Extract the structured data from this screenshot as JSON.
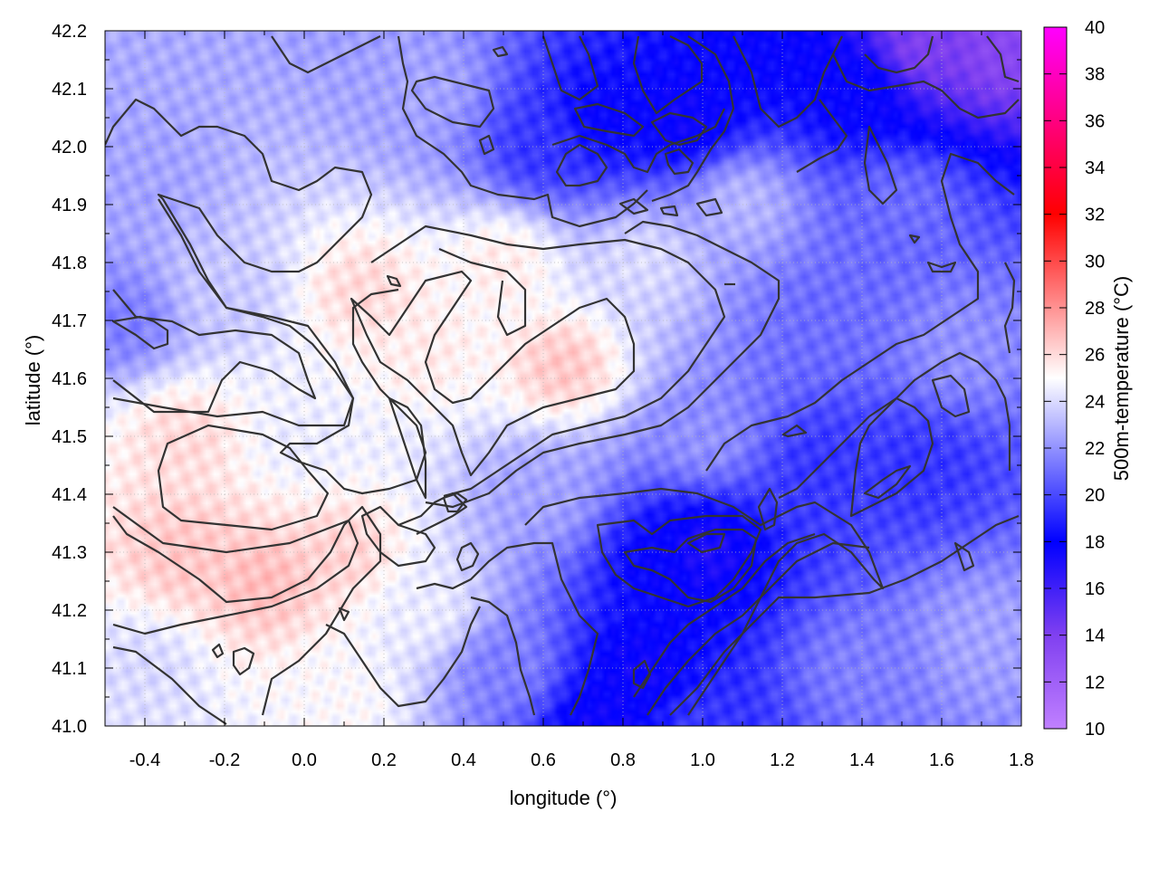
{
  "chart_data": {
    "type": "heatmap",
    "title": "",
    "xlabel": "longitude (°)",
    "ylabel": "latitude (°)",
    "colorbar_label": "500m-temperature (°C)",
    "xlim": [
      -0.5,
      1.8
    ],
    "ylim": [
      41.0,
      42.2
    ],
    "x_ticks": [
      -0.4,
      -0.2,
      0.0,
      0.2,
      0.4,
      0.6,
      0.8,
      1.0,
      1.2,
      1.4,
      1.6,
      1.8
    ],
    "x_tick_labels": [
      "-0.4",
      "-0.2",
      "0.0",
      "0.2",
      "0.4",
      "0.6",
      "0.8",
      "1.0",
      "1.2",
      "1.4",
      "1.6",
      "1.8"
    ],
    "y_ticks": [
      41.0,
      41.1,
      41.2,
      41.3,
      41.4,
      41.5,
      41.6,
      41.7,
      41.8,
      41.9,
      42.0,
      42.1,
      42.2
    ],
    "y_tick_labels": [
      "41.0",
      "41.1",
      "41.2",
      "41.3",
      "41.4",
      "41.5",
      "41.6",
      "41.7",
      "41.8",
      "41.9",
      "42.0",
      "42.1",
      "42.2"
    ],
    "colorbar_range": [
      10,
      40
    ],
    "colorbar_ticks": [
      10,
      12,
      14,
      16,
      18,
      20,
      22,
      24,
      26,
      28,
      30,
      32,
      34,
      36,
      38,
      40
    ],
    "colorbar_tick_labels": [
      "10",
      "12",
      "14",
      "16",
      "18",
      "20",
      "22",
      "24",
      "26",
      "28",
      "30",
      "32",
      "34",
      "36",
      "38",
      "40"
    ],
    "colormap": [
      {
        "value": 10,
        "color": "#c080ff"
      },
      {
        "value": 14,
        "color": "#8040f0"
      },
      {
        "value": 18,
        "color": "#0000ff"
      },
      {
        "value": 25,
        "color": "#ffffff"
      },
      {
        "value": 32,
        "color": "#ff0000"
      },
      {
        "value": 36,
        "color": "#ff0080"
      },
      {
        "value": 40,
        "color": "#ff00ff"
      }
    ],
    "grid": true,
    "contours": true,
    "temperature_field_samples": [
      {
        "lon": -0.3,
        "lat": 41.3,
        "t": 26.5
      },
      {
        "lon": -0.1,
        "lat": 41.25,
        "t": 26.8
      },
      {
        "lon": 0.1,
        "lat": 41.3,
        "t": 26.2
      },
      {
        "lon": -0.3,
        "lat": 41.5,
        "t": 26.0
      },
      {
        "lon": 0.15,
        "lat": 41.75,
        "t": 26.0
      },
      {
        "lon": 0.65,
        "lat": 41.62,
        "t": 26.5
      },
      {
        "lon": 0.5,
        "lat": 41.8,
        "t": 25.5
      },
      {
        "lon": 0.3,
        "lat": 41.65,
        "t": 25.5
      },
      {
        "lon": 0.0,
        "lat": 41.5,
        "t": 24.5
      },
      {
        "lon": -0.2,
        "lat": 41.75,
        "t": 23.5
      },
      {
        "lon": -0.4,
        "lat": 41.95,
        "t": 22.5
      },
      {
        "lon": -0.45,
        "lat": 41.7,
        "t": 21.5
      },
      {
        "lon": 0.3,
        "lat": 42.1,
        "t": 22.5
      },
      {
        "lon": 0.6,
        "lat": 42.0,
        "t": 19.5
      },
      {
        "lon": 0.75,
        "lat": 42.05,
        "t": 18.0
      },
      {
        "lon": 0.95,
        "lat": 42.05,
        "t": 17.5
      },
      {
        "lon": 1.1,
        "lat": 42.15,
        "t": 18.0
      },
      {
        "lon": 1.4,
        "lat": 42.1,
        "t": 18.0
      },
      {
        "lon": 1.55,
        "lat": 42.17,
        "t": 14.0
      },
      {
        "lon": 1.75,
        "lat": 42.17,
        "t": 13.5
      },
      {
        "lon": 1.5,
        "lat": 41.9,
        "t": 21.0
      },
      {
        "lon": 1.3,
        "lat": 41.7,
        "t": 21.0
      },
      {
        "lon": 1.3,
        "lat": 41.45,
        "t": 19.5
      },
      {
        "lon": 1.55,
        "lat": 41.45,
        "t": 19.5
      },
      {
        "lon": 1.0,
        "lat": 41.5,
        "t": 22.0
      },
      {
        "lon": 0.9,
        "lat": 41.28,
        "t": 18.0
      },
      {
        "lon": 1.0,
        "lat": 41.3,
        "t": 17.0
      },
      {
        "lon": 0.85,
        "lat": 41.1,
        "t": 17.5
      },
      {
        "lon": 0.75,
        "lat": 41.0,
        "t": 17.5
      },
      {
        "lon": 1.0,
        "lat": 41.0,
        "t": 19.5
      },
      {
        "lon": 1.4,
        "lat": 41.1,
        "t": 21.5
      },
      {
        "lon": 1.7,
        "lat": 41.15,
        "t": 22.5
      },
      {
        "lon": 0.5,
        "lat": 41.1,
        "t": 21.5
      },
      {
        "lon": 0.3,
        "lat": 41.2,
        "t": 24.5
      },
      {
        "lon": 0.6,
        "lat": 41.4,
        "t": 22.5
      },
      {
        "lon": 0.85,
        "lat": 41.8,
        "t": 24.0
      },
      {
        "lon": -0.4,
        "lat": 41.1,
        "t": 24.0
      },
      {
        "lon": 0.1,
        "lat": 41.05,
        "t": 25.0
      },
      {
        "lon": 1.65,
        "lat": 41.65,
        "t": 22.0
      },
      {
        "lon": 1.1,
        "lat": 41.9,
        "t": 23.0
      }
    ]
  }
}
